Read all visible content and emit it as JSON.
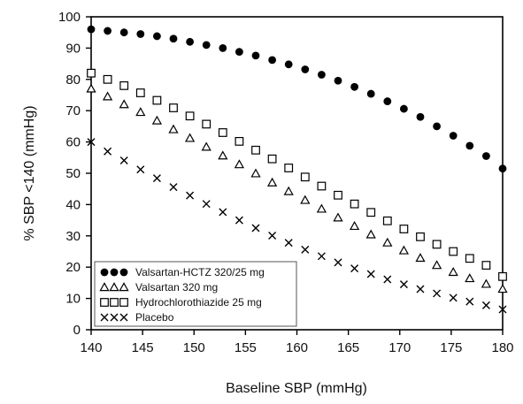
{
  "chart_data": {
    "type": "scatter",
    "xlabel": "Baseline SBP (mmHg)",
    "ylabel": "% SBP <140 (mmHg)",
    "xlim": [
      140,
      180
    ],
    "ylim": [
      0,
      100
    ],
    "x_ticks": [
      "140",
      "145",
      "150",
      "155",
      "160",
      "165",
      "170",
      "175",
      "180"
    ],
    "y_ticks": [
      "0",
      "10",
      "20",
      "30",
      "40",
      "50",
      "60",
      "70",
      "80",
      "90",
      "100"
    ],
    "grid": false,
    "legend_position": "bottom-left",
    "x": [
      140,
      141.6,
      143.2,
      144.8,
      146.4,
      148,
      149.6,
      151.2,
      152.8,
      154.4,
      156,
      157.6,
      159.2,
      160.8,
      162.4,
      164,
      165.6,
      167.2,
      168.8,
      170.4,
      172,
      173.6,
      175.2,
      176.8,
      178.4,
      180
    ],
    "series": [
      {
        "name": "Valsartan-HCTZ 320/25 mg",
        "marker": "filled-circle",
        "color": "#000000",
        "values": [
          96,
          95.5,
          95,
          94.5,
          93.8,
          93,
          92,
          91,
          90,
          88.8,
          87.6,
          86.2,
          84.8,
          83.2,
          81.5,
          79.6,
          77.6,
          75.4,
          73,
          70.6,
          68,
          65,
          62,
          58.8,
          55.5,
          51.5
        ]
      },
      {
        "name": "Valsartan 320 mg",
        "marker": "open-triangle",
        "color": "#000000",
        "values": [
          77,
          74.5,
          72,
          69.5,
          66.8,
          64,
          61.2,
          58.4,
          55.6,
          52.8,
          49.9,
          47,
          44.2,
          41.4,
          38.6,
          35.8,
          33.1,
          30.4,
          27.8,
          25.3,
          22.9,
          20.6,
          18.4,
          16.4,
          14.6,
          13
        ]
      },
      {
        "name": "Hydrochlorothiazide 25 mg",
        "marker": "open-square",
        "color": "#000000",
        "values": [
          82,
          80,
          78,
          75.7,
          73.3,
          70.9,
          68.3,
          65.7,
          63,
          60.2,
          57.4,
          54.6,
          51.7,
          48.8,
          45.9,
          43,
          40.2,
          37.5,
          34.8,
          32.2,
          29.7,
          27.3,
          25,
          22.8,
          20.6,
          17
        ]
      },
      {
        "name": "Placebo",
        "marker": "cross",
        "color": "#000000",
        "values": [
          60,
          57,
          54.1,
          51.2,
          48.4,
          45.6,
          42.9,
          40.2,
          37.6,
          35,
          32.5,
          30.1,
          27.8,
          25.6,
          23.5,
          21.5,
          19.6,
          17.8,
          16.1,
          14.5,
          13,
          11.6,
          10.2,
          9,
          7.8,
          6.5
        ]
      }
    ]
  }
}
